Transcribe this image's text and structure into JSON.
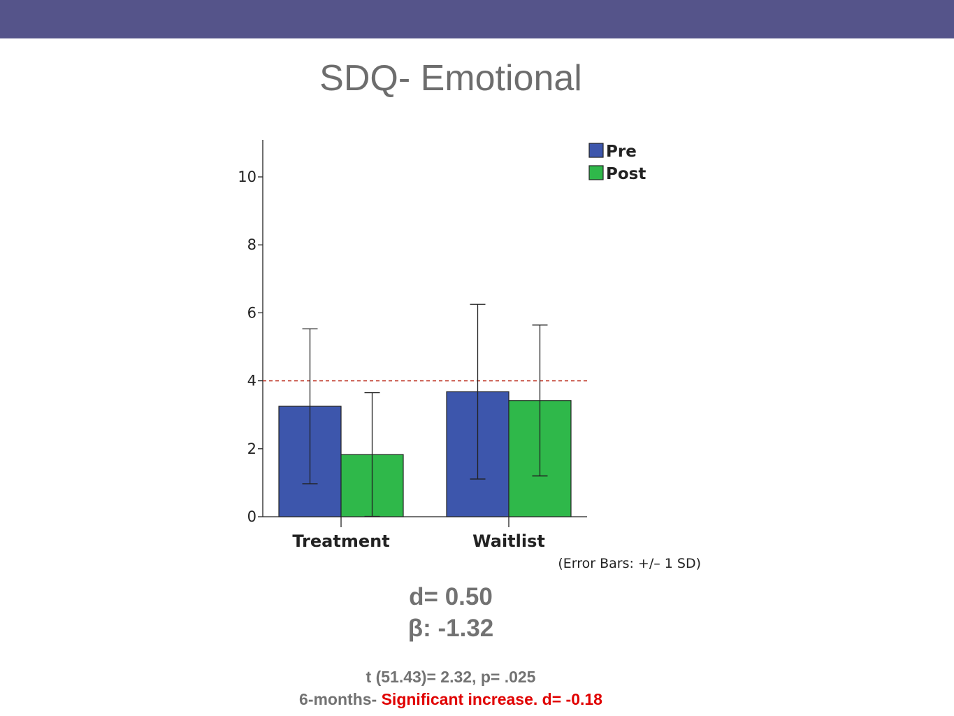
{
  "slide": {
    "title": "SDQ- Emotional",
    "stats": {
      "d": "d= 0.50",
      "beta": "β: -1.32",
      "t_test": "t (51.43)= 2.32, p= .025",
      "followup_prefix": "6-months- ",
      "followup_highlight": "Significant increase. d= -0.18"
    },
    "colors": {
      "header_bar": "#55548a",
      "highlight_text": "#e00000"
    }
  },
  "chart_data": {
    "type": "bar",
    "categories": [
      "Treatment",
      "Waitlist"
    ],
    "series": [
      {
        "name": "Pre",
        "color": "#3d56ac",
        "values": [
          3.25,
          3.68
        ],
        "sd": [
          2.28,
          2.57
        ]
      },
      {
        "name": "Post",
        "color": "#2fb84a",
        "values": [
          1.83,
          3.42
        ],
        "sd": [
          1.82,
          2.22
        ]
      }
    ],
    "yticks": [
      0,
      2,
      4,
      6,
      8,
      10
    ],
    "ylim": [
      0,
      11.1
    ],
    "reference_line": {
      "y": 4,
      "style": "dashed",
      "color": "#c0392b"
    },
    "legend_position": "top-right",
    "note": "(Error Bars: +/– 1 SD)"
  }
}
